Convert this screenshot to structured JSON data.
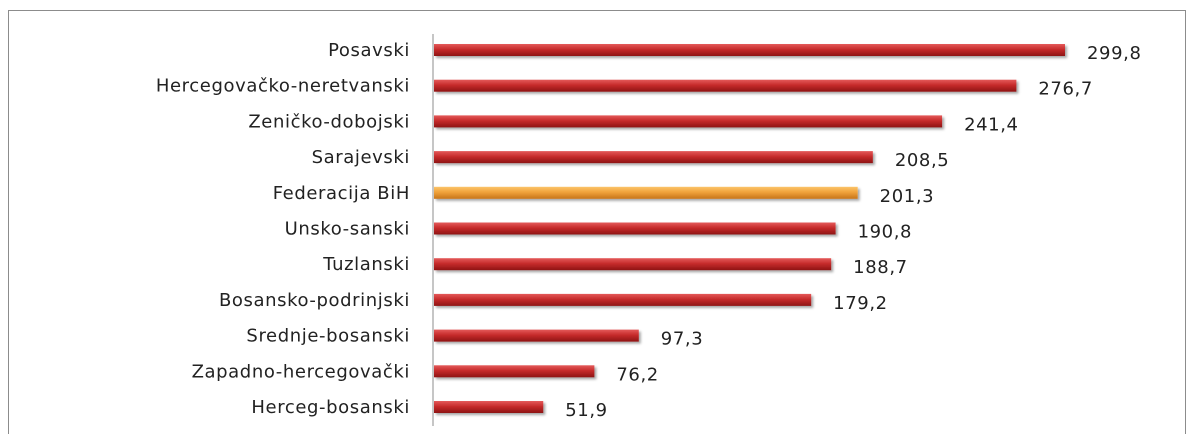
{
  "colors": {
    "bar": "#c62b2b",
    "bar_highlight": "#f0a23a",
    "axis": "#8c8c8c",
    "text": "#222222"
  },
  "chart_data": {
    "type": "bar",
    "orientation": "horizontal",
    "categories": [
      "Posavski",
      "Hercegovačko-neretvanski",
      "Zeničko-dobojski",
      "Sarajevski",
      "Federacija BiH",
      "Unsko-sanski",
      "Tuzlanski",
      "Bosansko-podrinjski",
      "Srednje-bosanski",
      "Zapadno-hercegovački",
      "Herceg-bosanski"
    ],
    "values": [
      299.8,
      276.7,
      241.4,
      208.5,
      201.3,
      190.8,
      188.7,
      179.2,
      97.3,
      76.2,
      51.9
    ],
    "value_labels": [
      "299,8",
      "276,7",
      "241,4",
      "208,5",
      "201,3",
      "190,8",
      "188,7",
      "179,2",
      "97,3",
      "76,2",
      "51,9"
    ],
    "highlight_category": "Federacija BiH",
    "xlim": [
      0,
      320
    ],
    "grid": false,
    "legend": "none"
  }
}
